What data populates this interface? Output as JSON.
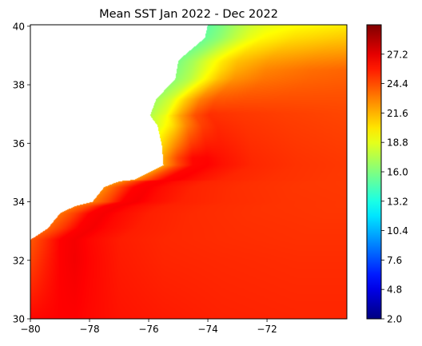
{
  "chart_data": {
    "type": "heatmap",
    "title": "Mean SST Jan 2022 - Dec 2022",
    "xlabel": "",
    "ylabel": "",
    "xlim": [
      -80,
      -69.3
    ],
    "ylim": [
      30,
      40.05
    ],
    "x_ticks": [
      -80,
      -78,
      -76,
      -74,
      -72
    ],
    "x_tick_labels": [
      "−80",
      "−78",
      "−76",
      "−74",
      "−72"
    ],
    "y_ticks": [
      30,
      32,
      34,
      36,
      38,
      40
    ],
    "y_tick_labels": [
      "30",
      "32",
      "34",
      "36",
      "38",
      "40"
    ],
    "colormap": "jet",
    "colorbar": {
      "min": 2.0,
      "max": 30.0,
      "ticks": [
        2.0,
        4.8,
        7.6,
        10.4,
        13.2,
        16.0,
        18.8,
        21.6,
        24.4,
        27.2
      ],
      "tick_labels": [
        "2.0",
        "4.8",
        "7.6",
        "10.4",
        "13.2",
        "16.0",
        "18.8",
        "21.6",
        "24.4",
        "27.2"
      ]
    },
    "grid": false,
    "land_color": "#ffffff",
    "coastline": [
      [
        -80,
        32.7
      ],
      [
        -79.4,
        33.1
      ],
      [
        -79.0,
        33.6
      ],
      [
        -78.5,
        33.85
      ],
      [
        -77.9,
        34.0
      ],
      [
        -77.5,
        34.5
      ],
      [
        -77.0,
        34.7
      ],
      [
        -76.5,
        34.75
      ],
      [
        -76.0,
        35.0
      ],
      [
        -75.5,
        35.25
      ],
      [
        -75.55,
        35.9
      ],
      [
        -75.7,
        36.6
      ],
      [
        -75.95,
        36.95
      ],
      [
        -75.75,
        37.5
      ],
      [
        -75.1,
        38.2
      ],
      [
        -75.0,
        38.8
      ],
      [
        -74.8,
        39.0
      ],
      [
        -74.1,
        39.6
      ],
      [
        -74.0,
        40.05
      ]
    ],
    "sst_profile": {
      "distance_offshore_deg": [
        -0.6,
        -0.1,
        0.5,
        1.0,
        1.5,
        2.0,
        3.0,
        4.5,
        6.5,
        9.0
      ],
      "sst_degC_by_latitude": [
        {
          "lat": 30,
          "sst": [
            26.2,
            26.3,
            26.4,
            26.5,
            26.5,
            26.3,
            26.0,
            25.8,
            25.6,
            25.5
          ]
        },
        {
          "lat": 32,
          "sst": [
            23.5,
            24.4,
            25.6,
            26.5,
            26.8,
            26.4,
            25.8,
            25.5,
            25.4,
            25.3
          ]
        },
        {
          "lat": 34,
          "sst": [
            21.8,
            22.8,
            24.5,
            26.5,
            26.7,
            26.2,
            25.6,
            25.3,
            25.1,
            25.0
          ]
        },
        {
          "lat": 35.5,
          "sst": [
            20.5,
            21.3,
            24.6,
            26.3,
            26.4,
            26.0,
            25.4,
            25.1,
            24.9,
            24.8
          ]
        },
        {
          "lat": 37,
          "sst": [
            16.6,
            17.0,
            18.8,
            21.8,
            24.2,
            25.2,
            25.0,
            24.8,
            24.6,
            24.5
          ]
        },
        {
          "lat": 38.5,
          "sst": [
            15.5,
            15.9,
            17.3,
            19.0,
            20.6,
            21.8,
            22.9,
            23.5,
            23.9,
            24.0
          ]
        },
        {
          "lat": 40.05,
          "sst": [
            14.6,
            14.9,
            16.0,
            17.2,
            18.2,
            18.8,
            19.4,
            19.9,
            20.3,
            20.5
          ]
        }
      ]
    }
  }
}
